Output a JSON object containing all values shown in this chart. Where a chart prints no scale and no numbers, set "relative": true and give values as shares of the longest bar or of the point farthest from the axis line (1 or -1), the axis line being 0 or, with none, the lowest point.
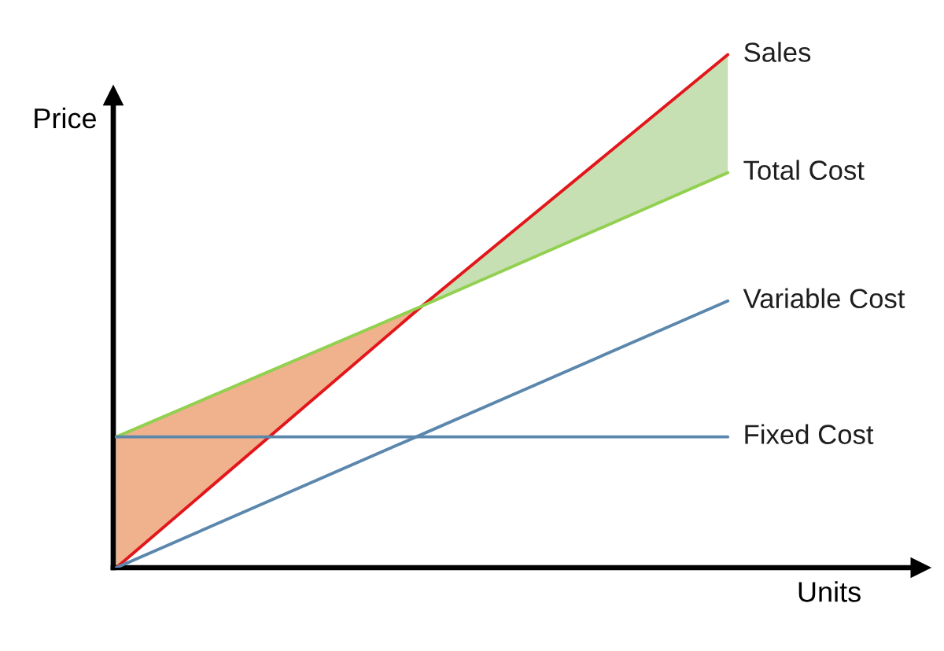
{
  "chart_data": {
    "type": "line",
    "relative": true,
    "xlabel": "Units",
    "ylabel": "Price",
    "categories": [
      null,
      null,
      null
    ],
    "series": [
      {
        "type": "area",
        "color": "#f0b18d",
        "values": [
          null,
          null,
          null
        ],
        "lower": [
          0,
          0.51,
          null
        ],
        "upper": [
          0.255,
          0.51,
          null
        ]
      },
      {
        "type": "area",
        "color": "#c6e0b4",
        "values": [
          null,
          null,
          null
        ],
        "lower": [
          null,
          0.51,
          0.77
        ],
        "upper": [
          null,
          0.51,
          1
        ]
      },
      {
        "name": "Sales",
        "color": "#e3161b",
        "values": [
          0,
          0.51,
          1
        ]
      },
      {
        "name": "Total Cost",
        "color": "#92d050",
        "values": [
          0.255,
          0.51,
          0.77
        ]
      },
      {
        "name": "Variable Cost",
        "color": "#5b87ad",
        "values": [
          0,
          0.26,
          0.52
        ]
      },
      {
        "name": "Fixed Cost",
        "color": "#5b87ad",
        "values": [
          0.255,
          0.255,
          0.255
        ]
      }
    ]
  }
}
